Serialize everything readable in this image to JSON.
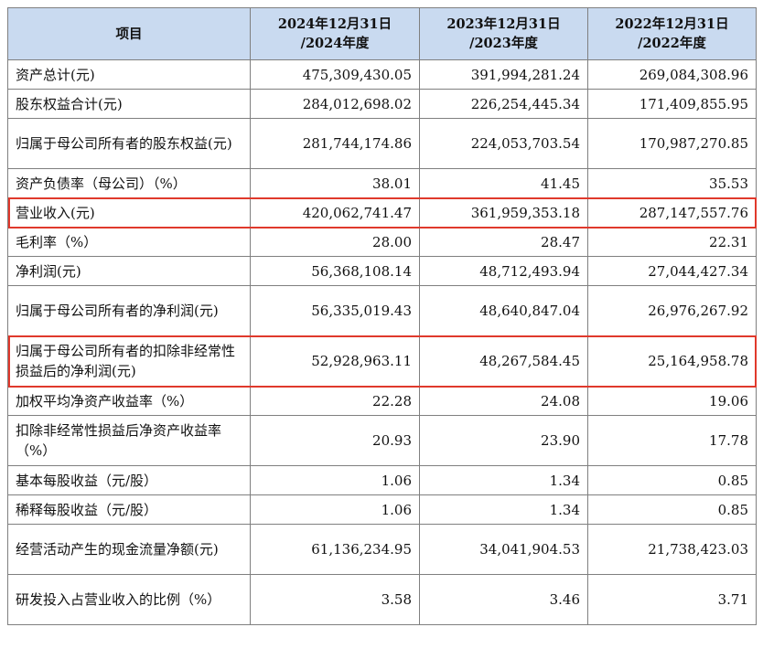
{
  "table": {
    "headers": [
      {
        "line1": "项目",
        "line2": ""
      },
      {
        "line1": "2024年12月31日",
        "line2": "/2024年度"
      },
      {
        "line1": "2023年12月31日",
        "line2": "/2023年度"
      },
      {
        "line1": "2022年12月31日",
        "line2": "/2022年度"
      }
    ],
    "rows": [
      {
        "label": "资产总计(元)",
        "v2024": "475,309,430.05",
        "v2023": "391,994,281.24",
        "v2022": "269,084,308.96",
        "highlight": false
      },
      {
        "label": "股东权益合计(元)",
        "v2024": "284,012,698.02",
        "v2023": "226,254,445.34",
        "v2022": "171,409,855.95",
        "highlight": false
      },
      {
        "label": "归属于母公司所有者的股东权益(元)",
        "v2024": "281,744,174.86",
        "v2023": "224,053,703.54",
        "v2022": "170,987,270.85",
        "highlight": false
      },
      {
        "label": "资产负债率（母公司）（%）",
        "v2024": "38.01",
        "v2023": "41.45",
        "v2022": "35.53",
        "highlight": false
      },
      {
        "label": "营业收入(元)",
        "v2024": "420,062,741.47",
        "v2023": "361,959,353.18",
        "v2022": "287,147,557.76",
        "highlight": true
      },
      {
        "label": "毛利率（%）",
        "v2024": "28.00",
        "v2023": "28.47",
        "v2022": "22.31",
        "highlight": false
      },
      {
        "label": "净利润(元)",
        "v2024": "56,368,108.14",
        "v2023": "48,712,493.94",
        "v2022": "27,044,427.34",
        "highlight": false
      },
      {
        "label": "归属于母公司所有者的净利润(元)",
        "v2024": "56,335,019.43",
        "v2023": "48,640,847.04",
        "v2022": "26,976,267.92",
        "highlight": false
      },
      {
        "label": "归属于母公司所有者的扣除非经常性损益后的净利润(元)",
        "v2024": "52,928,963.11",
        "v2023": "48,267,584.45",
        "v2022": "25,164,958.78",
        "highlight": true
      },
      {
        "label": "加权平均净资产收益率（%）",
        "v2024": "22.28",
        "v2023": "24.08",
        "v2022": "19.06",
        "highlight": false
      },
      {
        "label": "扣除非经常性损益后净资产收益率（%）",
        "v2024": "20.93",
        "v2023": "23.90",
        "v2022": "17.78",
        "highlight": false
      },
      {
        "label": "基本每股收益（元/股）",
        "v2024": "1.06",
        "v2023": "1.34",
        "v2022": "0.85",
        "highlight": false
      },
      {
        "label": "稀释每股收益（元/股）",
        "v2024": "1.06",
        "v2023": "1.34",
        "v2022": "0.85",
        "highlight": false
      },
      {
        "label": "经营活动产生的现金流量净额(元)",
        "v2024": "61,136,234.95",
        "v2023": "34,041,904.53",
        "v2022": "21,738,423.03",
        "highlight": false
      },
      {
        "label": "研发投入占营业收入的比例（%）",
        "v2024": "3.58",
        "v2023": "3.46",
        "v2022": "3.71",
        "highlight": false
      }
    ]
  },
  "colors": {
    "header_bg": "#c9daf0",
    "highlight_border": "#e0392c",
    "grid": "#7f7f7f"
  }
}
